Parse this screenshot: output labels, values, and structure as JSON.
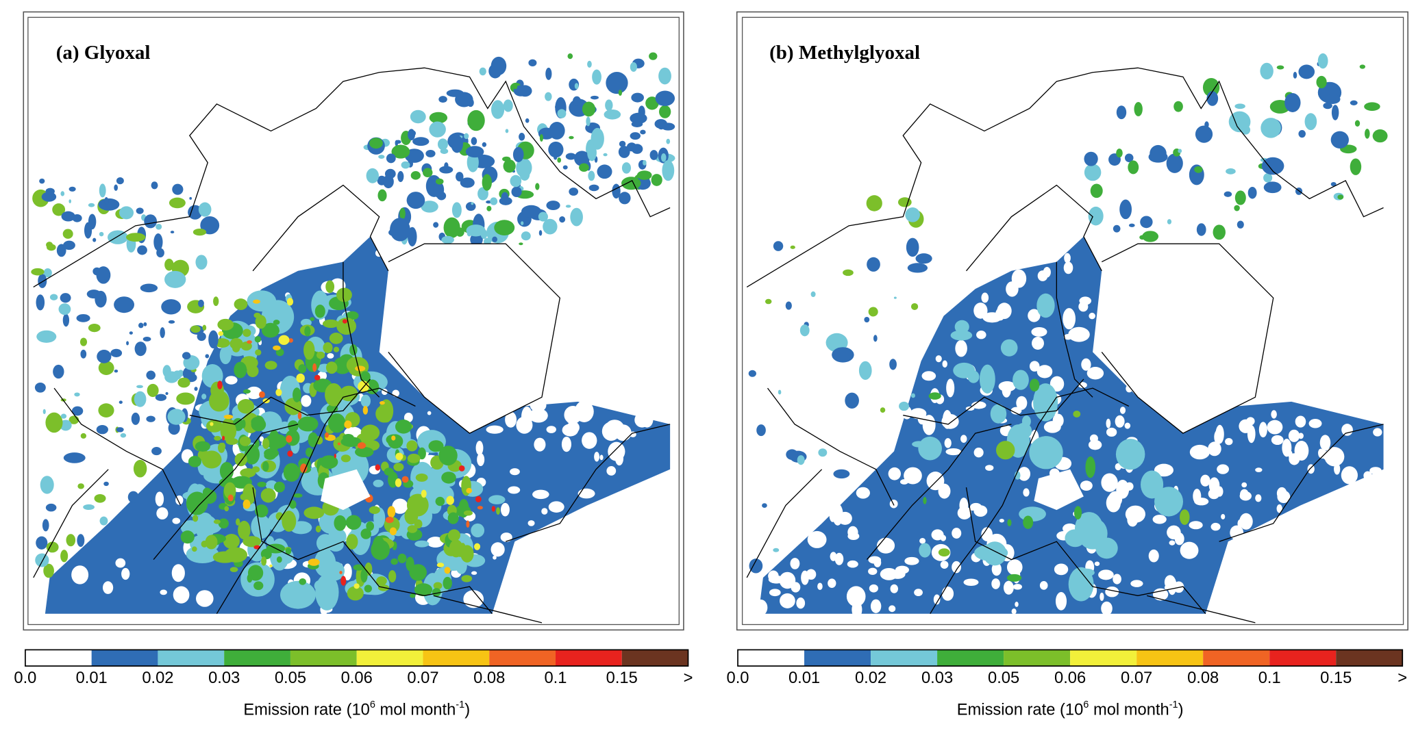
{
  "chart_data": {
    "type": "heatmap",
    "panels": [
      {
        "id": "a",
        "title": "(a) Glyoxal"
      },
      {
        "id": "b",
        "title": "(b) Methylglyoxal"
      }
    ],
    "colorbar": {
      "labels": [
        "0.0",
        "0.01",
        "0.02",
        "0.03",
        "0.05",
        "0.06",
        "0.07",
        "0.08",
        "0.1",
        "0.15",
        ">"
      ],
      "levels": [
        0.0,
        0.01,
        0.02,
        0.03,
        0.05,
        0.06,
        0.07,
        0.08,
        0.1,
        0.15
      ],
      "colors": [
        "#ffffff",
        "#2f6db5",
        "#74c8d8",
        "#3fae3a",
        "#7cbf2a",
        "#f2f03a",
        "#f7c414",
        "#f06424",
        "#e8231e",
        "#6b3420"
      ],
      "title_parts": {
        "main": "Emission rate (10",
        "sup1": "6",
        "mid": " mol month",
        "sup2": "-1",
        "end": ")"
      }
    }
  }
}
